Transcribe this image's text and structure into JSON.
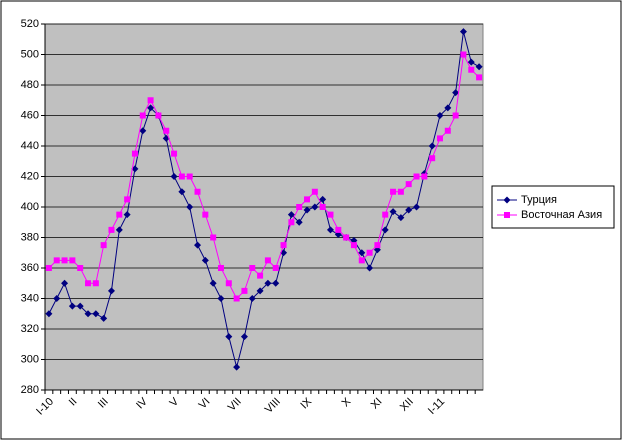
{
  "chart_data": {
    "type": "line",
    "categories": [
      "I-10",
      null,
      null,
      "II",
      null,
      null,
      null,
      "III",
      null,
      null,
      null,
      null,
      "IV",
      null,
      null,
      null,
      "V",
      null,
      null,
      null,
      "VI",
      null,
      null,
      null,
      "VII",
      null,
      null,
      null,
      null,
      "VIII",
      null,
      null,
      null,
      "IX",
      null,
      null,
      null,
      null,
      "X",
      null,
      null,
      null,
      "XI",
      null,
      null,
      null,
      "XII",
      null,
      null,
      null,
      "I-11",
      null,
      null,
      null,
      null,
      null
    ],
    "series": [
      {
        "name": "Турция",
        "color": "#000080",
        "marker": "diamond",
        "values": [
          330,
          340,
          350,
          335,
          335,
          330,
          330,
          327,
          345,
          385,
          395,
          425,
          450,
          465,
          460,
          445,
          420,
          410,
          400,
          375,
          365,
          350,
          340,
          315,
          295,
          315,
          340,
          345,
          350,
          350,
          370,
          395,
          390,
          398,
          400,
          405,
          385,
          382,
          380,
          378,
          370,
          360,
          372,
          385,
          397,
          393,
          398,
          400,
          422,
          440,
          460,
          465,
          475,
          515,
          495,
          492
        ]
      },
      {
        "name": "Восточная Азия",
        "color": "#ff00ff",
        "marker": "square",
        "values": [
          360,
          365,
          365,
          365,
          360,
          350,
          350,
          375,
          385,
          395,
          405,
          435,
          460,
          470,
          460,
          450,
          435,
          420,
          420,
          410,
          395,
          380,
          360,
          350,
          340,
          345,
          360,
          355,
          365,
          360,
          375,
          390,
          400,
          405,
          410,
          400,
          395,
          385,
          380,
          375,
          365,
          370,
          375,
          395,
          410,
          410,
          415,
          420,
          420,
          432,
          445,
          450,
          460,
          500,
          490,
          485
        ]
      }
    ],
    "ylim": [
      280,
      520
    ],
    "yticks": [
      280,
      300,
      320,
      340,
      360,
      380,
      400,
      420,
      440,
      460,
      480,
      500,
      520
    ],
    "grid": true
  }
}
